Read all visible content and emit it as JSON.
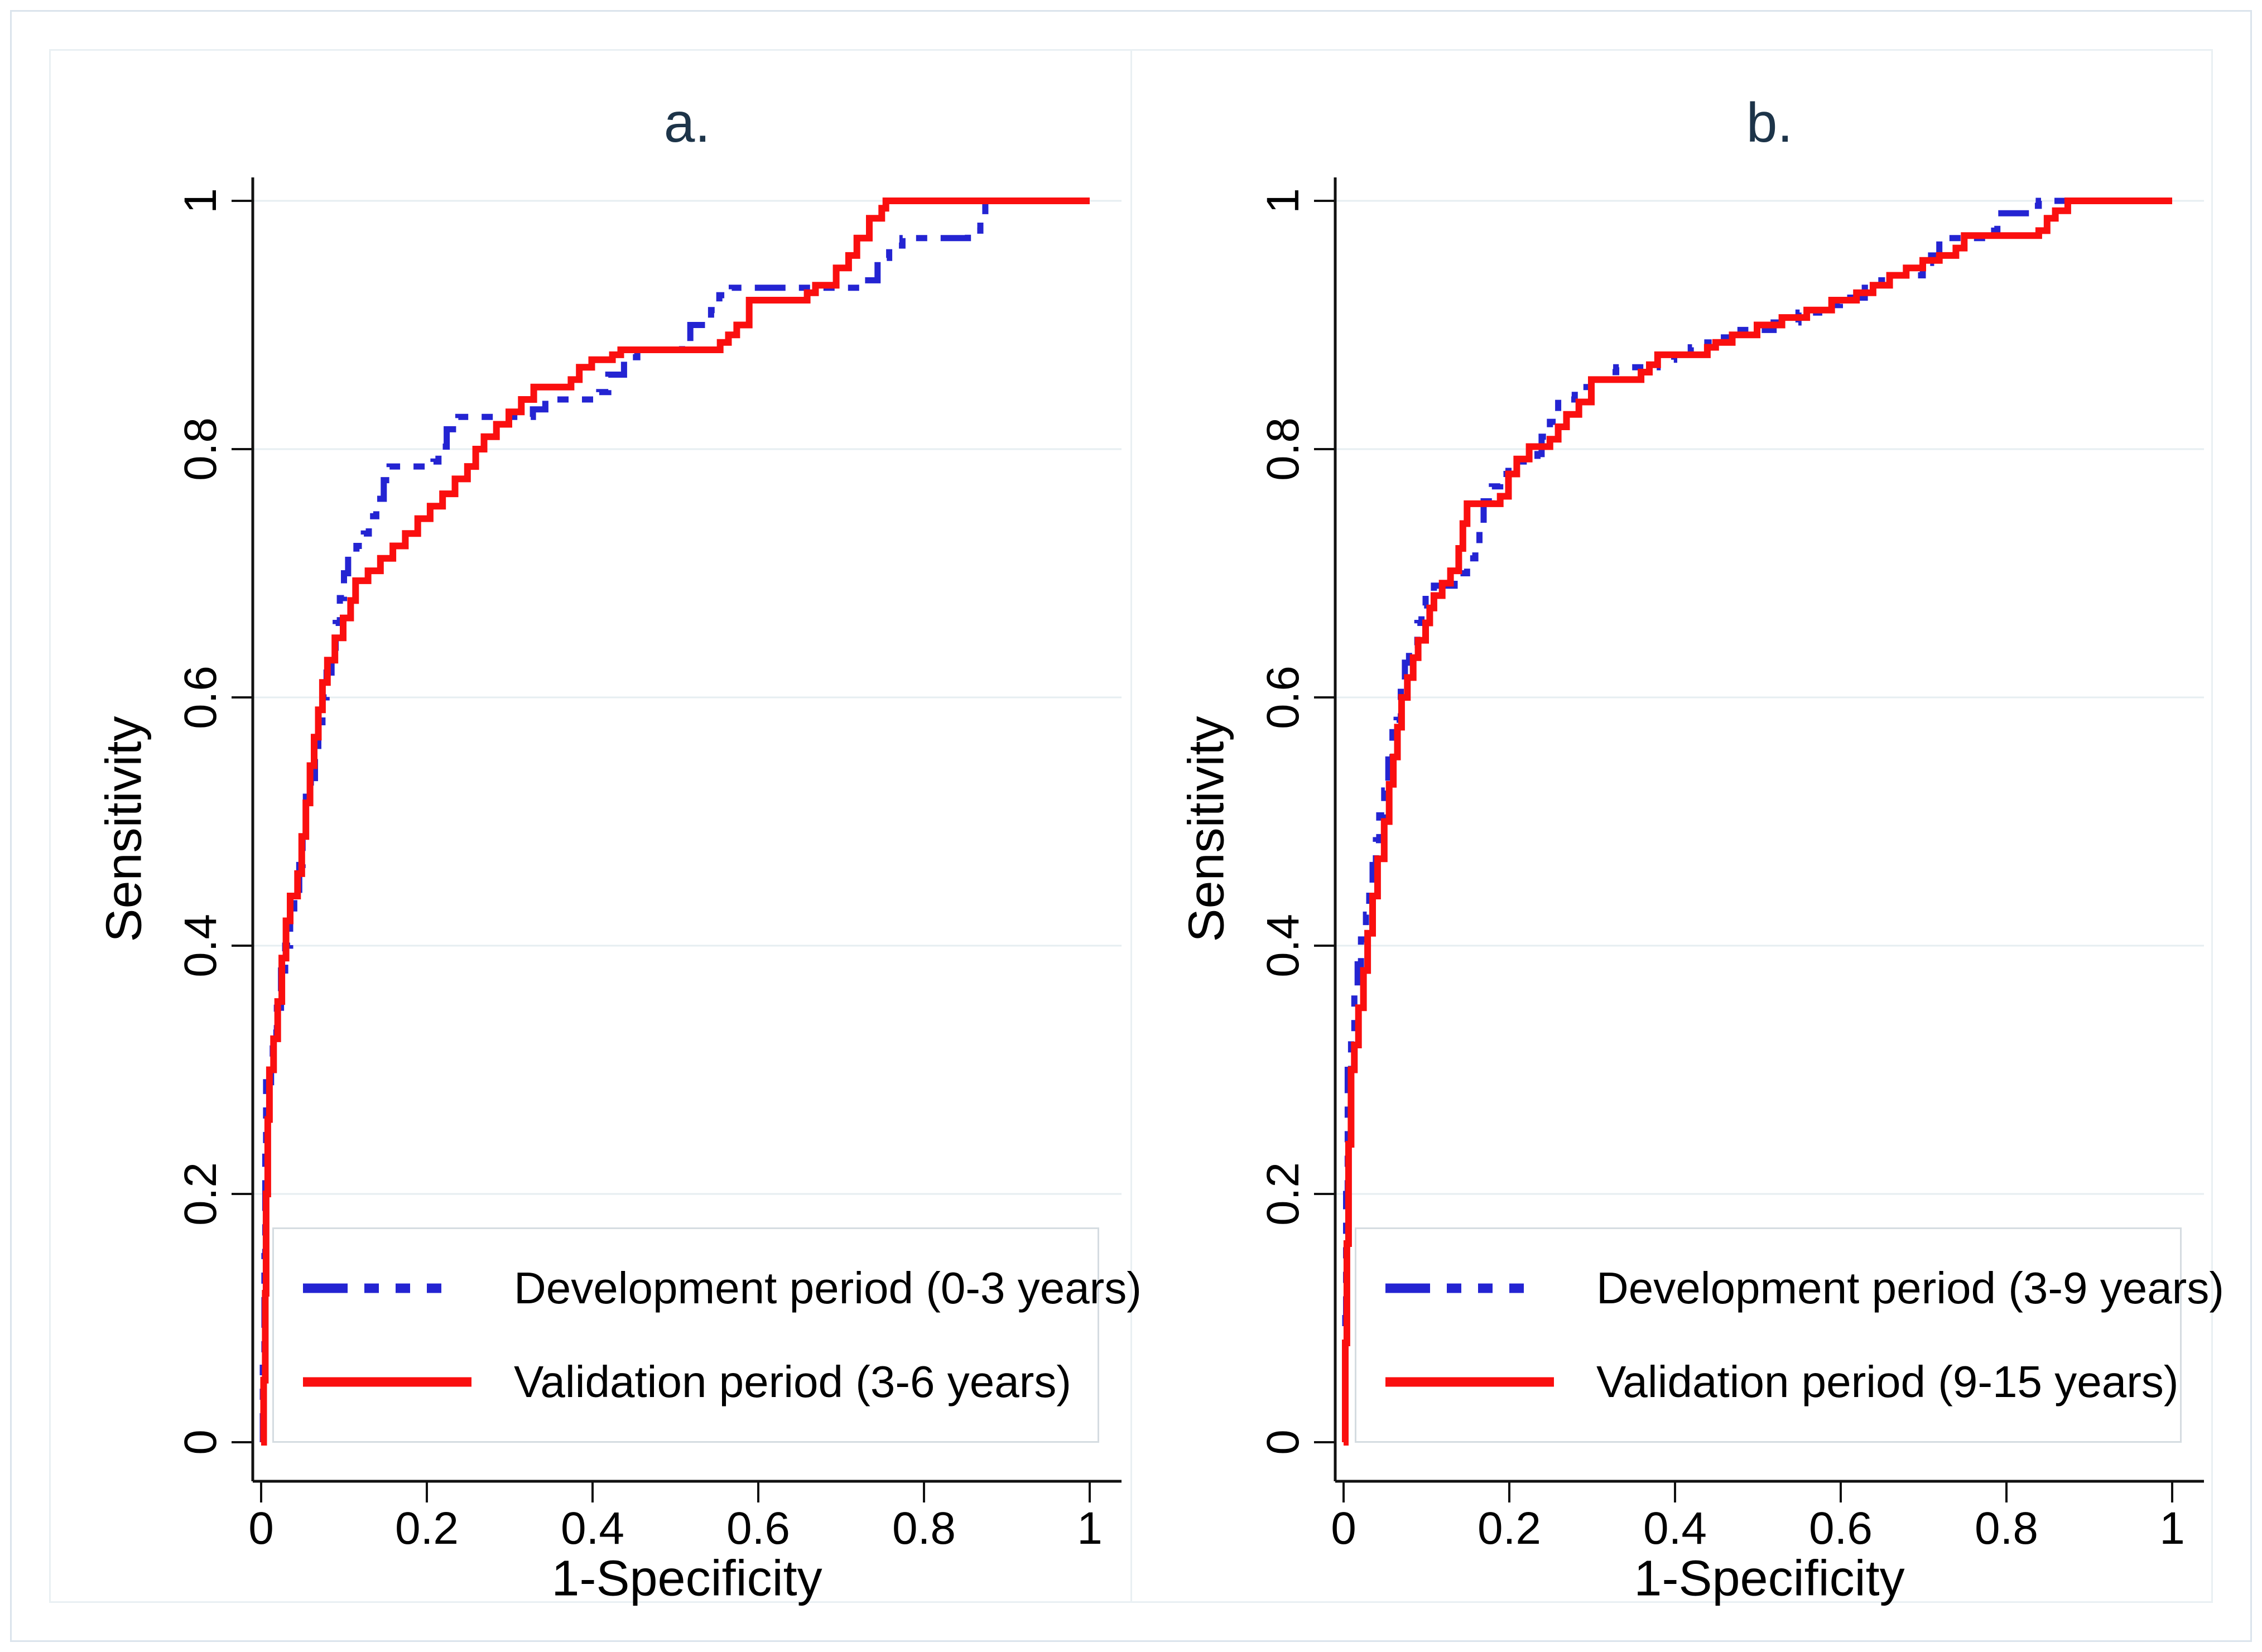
{
  "colors": {
    "development": "#2424d2",
    "validation": "#fa0f0f",
    "grid": "#e6eef1",
    "axis": "#111111",
    "title": "#1d3449",
    "legend_border": "#d5dce1",
    "outer_border": "#dbe4ec",
    "figure_border": "#e9f0f3"
  },
  "chart_data": [
    {
      "type": "line",
      "title": "a.",
      "xlabel": "1-Specificity",
      "ylabel": "Sensitivity",
      "xlim": [
        0,
        1
      ],
      "ylim": [
        0,
        1
      ],
      "grid": "horizontal",
      "legend_position": "inside-bottom-right",
      "xticks": [
        {
          "v": 0,
          "label": "0"
        },
        {
          "v": 0.2,
          "label": "0.2"
        },
        {
          "v": 0.4,
          "label": "0.4"
        },
        {
          "v": 0.6,
          "label": "0.6"
        },
        {
          "v": 0.8,
          "label": "0.8"
        },
        {
          "v": 1,
          "label": "1"
        }
      ],
      "yticks": [
        {
          "v": 0,
          "label": "0"
        },
        {
          "v": 0.2,
          "label": "0.2"
        },
        {
          "v": 0.4,
          "label": "0.4"
        },
        {
          "v": 0.6,
          "label": "0.6"
        },
        {
          "v": 0.8,
          "label": "0.8"
        },
        {
          "v": 1,
          "label": "1"
        }
      ],
      "legend": [
        {
          "label": "Development period (0-3 years)",
          "color": "#2424d2",
          "style": "dashdot"
        },
        {
          "label": "Validation period (3-6 years)",
          "color": "#fa0f0f",
          "style": "solid"
        }
      ],
      "series": [
        {
          "name": "Development period (0-3 years)",
          "color": "#2424d2",
          "dashed": true,
          "width": 11,
          "points": [
            [
              0,
              0
            ],
            [
              0.002,
              0.06
            ],
            [
              0.004,
              0.15
            ],
            [
              0.005,
              0.23
            ],
            [
              0.006,
              0.29
            ],
            [
              0.012,
              0.305
            ],
            [
              0.014,
              0.33
            ],
            [
              0.019,
              0.35
            ],
            [
              0.024,
              0.38
            ],
            [
              0.029,
              0.4
            ],
            [
              0.035,
              0.43
            ],
            [
              0.04,
              0.445
            ],
            [
              0.046,
              0.465
            ],
            [
              0.05,
              0.49
            ],
            [
              0.054,
              0.52
            ],
            [
              0.06,
              0.535
            ],
            [
              0.065,
              0.555
            ],
            [
              0.069,
              0.58
            ],
            [
              0.074,
              0.6
            ],
            [
              0.079,
              0.62
            ],
            [
              0.085,
              0.64
            ],
            [
              0.09,
              0.66
            ],
            [
              0.095,
              0.68
            ],
            [
              0.1,
              0.7
            ],
            [
              0.105,
              0.715
            ],
            [
              0.115,
              0.722
            ],
            [
              0.124,
              0.732
            ],
            [
              0.13,
              0.746
            ],
            [
              0.139,
              0.76
            ],
            [
              0.148,
              0.775
            ],
            [
              0.155,
              0.786
            ],
            [
              0.208,
              0.79
            ],
            [
              0.214,
              0.802
            ],
            [
              0.224,
              0.816
            ],
            [
              0.238,
              0.826
            ],
            [
              0.328,
              0.832
            ],
            [
              0.343,
              0.84
            ],
            [
              0.408,
              0.846
            ],
            [
              0.419,
              0.86
            ],
            [
              0.438,
              0.874
            ],
            [
              0.454,
              0.88
            ],
            [
              0.508,
              0.886
            ],
            [
              0.518,
              0.9
            ],
            [
              0.543,
              0.912
            ],
            [
              0.553,
              0.924
            ],
            [
              0.568,
              0.93
            ],
            [
              0.728,
              0.936
            ],
            [
              0.744,
              0.954
            ],
            [
              0.758,
              0.964
            ],
            [
              0.774,
              0.97
            ],
            [
              0.853,
              0.976
            ],
            [
              0.868,
              0.98
            ],
            [
              0.874,
              1
            ],
            [
              1,
              1
            ]
          ]
        },
        {
          "name": "Validation period (3-6 years)",
          "color": "#fa0f0f",
          "dashed": false,
          "width": 12,
          "points": [
            [
              0,
              0
            ],
            [
              0.003,
              0.05
            ],
            [
              0.005,
              0.12
            ],
            [
              0.006,
              0.2
            ],
            [
              0.008,
              0.26
            ],
            [
              0.01,
              0.3
            ],
            [
              0.015,
              0.325
            ],
            [
              0.02,
              0.355
            ],
            [
              0.025,
              0.39
            ],
            [
              0.03,
              0.42
            ],
            [
              0.035,
              0.44
            ],
            [
              0.044,
              0.458
            ],
            [
              0.049,
              0.488
            ],
            [
              0.054,
              0.515
            ],
            [
              0.059,
              0.545
            ],
            [
              0.064,
              0.568
            ],
            [
              0.069,
              0.59
            ],
            [
              0.074,
              0.612
            ],
            [
              0.08,
              0.63
            ],
            [
              0.089,
              0.648
            ],
            [
              0.099,
              0.664
            ],
            [
              0.108,
              0.678
            ],
            [
              0.114,
              0.694
            ],
            [
              0.129,
              0.702
            ],
            [
              0.144,
              0.712
            ],
            [
              0.159,
              0.722
            ],
            [
              0.174,
              0.732
            ],
            [
              0.189,
              0.744
            ],
            [
              0.204,
              0.754
            ],
            [
              0.219,
              0.764
            ],
            [
              0.234,
              0.776
            ],
            [
              0.249,
              0.786
            ],
            [
              0.259,
              0.8
            ],
            [
              0.269,
              0.81
            ],
            [
              0.284,
              0.82
            ],
            [
              0.299,
              0.83
            ],
            [
              0.314,
              0.84
            ],
            [
              0.329,
              0.85
            ],
            [
              0.374,
              0.856
            ],
            [
              0.384,
              0.866
            ],
            [
              0.399,
              0.872
            ],
            [
              0.424,
              0.876
            ],
            [
              0.434,
              0.88
            ],
            [
              0.554,
              0.886
            ],
            [
              0.564,
              0.892
            ],
            [
              0.574,
              0.9
            ],
            [
              0.589,
              0.92
            ],
            [
              0.659,
              0.926
            ],
            [
              0.669,
              0.932
            ],
            [
              0.694,
              0.946
            ],
            [
              0.709,
              0.956
            ],
            [
              0.719,
              0.97
            ],
            [
              0.734,
              0.986
            ],
            [
              0.749,
              0.994
            ],
            [
              0.754,
              1
            ],
            [
              1,
              1
            ]
          ]
        }
      ]
    },
    {
      "type": "line",
      "title": "b.",
      "xlabel": "1-Specificity",
      "ylabel": "Sensitivity",
      "xlim": [
        0,
        1
      ],
      "ylim": [
        0,
        1
      ],
      "grid": "horizontal",
      "legend_position": "inside-bottom-right",
      "xticks": [
        {
          "v": 0,
          "label": "0"
        },
        {
          "v": 0.2,
          "label": "0.2"
        },
        {
          "v": 0.4,
          "label": "0.4"
        },
        {
          "v": 0.6,
          "label": "0.6"
        },
        {
          "v": 0.8,
          "label": "0.8"
        },
        {
          "v": 1,
          "label": "1"
        }
      ],
      "yticks": [
        {
          "v": 0,
          "label": "0"
        },
        {
          "v": 0.2,
          "label": "0.2"
        },
        {
          "v": 0.4,
          "label": "0.4"
        },
        {
          "v": 0.6,
          "label": "0.6"
        },
        {
          "v": 0.8,
          "label": "0.8"
        },
        {
          "v": 1,
          "label": "1"
        }
      ],
      "legend": [
        {
          "label": "Development period (3-9 years)",
          "color": "#2424d2",
          "style": "dashdot"
        },
        {
          "label": "Validation period (9-15 years)",
          "color": "#fa0f0f",
          "style": "solid"
        }
      ],
      "series": [
        {
          "name": "Development period (3-9 years)",
          "color": "#2424d2",
          "dashed": true,
          "width": 11,
          "points": [
            [
              0,
              0
            ],
            [
              0.002,
              0.1
            ],
            [
              0.003,
              0.2
            ],
            [
              0.005,
              0.3
            ],
            [
              0.009,
              0.33
            ],
            [
              0.013,
              0.36
            ],
            [
              0.017,
              0.385
            ],
            [
              0.021,
              0.405
            ],
            [
              0.027,
              0.425
            ],
            [
              0.031,
              0.445
            ],
            [
              0.035,
              0.465
            ],
            [
              0.039,
              0.485
            ],
            [
              0.043,
              0.505
            ],
            [
              0.049,
              0.525
            ],
            [
              0.054,
              0.55
            ],
            [
              0.059,
              0.572
            ],
            [
              0.064,
              0.582
            ],
            [
              0.069,
              0.608
            ],
            [
              0.074,
              0.628
            ],
            [
              0.079,
              0.642
            ],
            [
              0.089,
              0.66
            ],
            [
              0.094,
              0.674
            ],
            [
              0.099,
              0.682
            ],
            [
              0.109,
              0.69
            ],
            [
              0.134,
              0.7
            ],
            [
              0.149,
              0.712
            ],
            [
              0.159,
              0.722
            ],
            [
              0.164,
              0.74
            ],
            [
              0.169,
              0.758
            ],
            [
              0.179,
              0.77
            ],
            [
              0.189,
              0.78
            ],
            [
              0.199,
              0.79
            ],
            [
              0.234,
              0.796
            ],
            [
              0.239,
              0.81
            ],
            [
              0.249,
              0.822
            ],
            [
              0.259,
              0.84
            ],
            [
              0.279,
              0.85
            ],
            [
              0.299,
              0.856
            ],
            [
              0.319,
              0.862
            ],
            [
              0.329,
              0.866
            ],
            [
              0.379,
              0.872
            ],
            [
              0.399,
              0.876
            ],
            [
              0.419,
              0.882
            ],
            [
              0.439,
              0.886
            ],
            [
              0.459,
              0.89
            ],
            [
              0.479,
              0.896
            ],
            [
              0.519,
              0.902
            ],
            [
              0.549,
              0.91
            ],
            [
              0.574,
              0.916
            ],
            [
              0.599,
              0.922
            ],
            [
              0.629,
              0.93
            ],
            [
              0.649,
              0.936
            ],
            [
              0.659,
              0.94
            ],
            [
              0.699,
              0.95
            ],
            [
              0.709,
              0.956
            ],
            [
              0.719,
              0.97
            ],
            [
              0.779,
              0.976
            ],
            [
              0.789,
              0.99
            ],
            [
              0.829,
              0.996
            ],
            [
              0.839,
              1
            ],
            [
              1,
              1
            ]
          ]
        },
        {
          "name": "Validation period (9-15 years)",
          "color": "#fa0f0f",
          "dashed": false,
          "width": 12,
          "points": [
            [
              0,
              0
            ],
            [
              0.002,
              0.08
            ],
            [
              0.004,
              0.16
            ],
            [
              0.006,
              0.24
            ],
            [
              0.009,
              0.3
            ],
            [
              0.013,
              0.32
            ],
            [
              0.018,
              0.35
            ],
            [
              0.024,
              0.38
            ],
            [
              0.029,
              0.41
            ],
            [
              0.035,
              0.44
            ],
            [
              0.041,
              0.47
            ],
            [
              0.049,
              0.5
            ],
            [
              0.055,
              0.53
            ],
            [
              0.06,
              0.552
            ],
            [
              0.065,
              0.576
            ],
            [
              0.07,
              0.6
            ],
            [
              0.077,
              0.616
            ],
            [
              0.084,
              0.632
            ],
            [
              0.09,
              0.646
            ],
            [
              0.099,
              0.66
            ],
            [
              0.104,
              0.672
            ],
            [
              0.109,
              0.682
            ],
            [
              0.119,
              0.692
            ],
            [
              0.129,
              0.702
            ],
            [
              0.139,
              0.72
            ],
            [
              0.144,
              0.74
            ],
            [
              0.149,
              0.756
            ],
            [
              0.189,
              0.762
            ],
            [
              0.199,
              0.78
            ],
            [
              0.209,
              0.792
            ],
            [
              0.224,
              0.802
            ],
            [
              0.249,
              0.808
            ],
            [
              0.259,
              0.818
            ],
            [
              0.269,
              0.828
            ],
            [
              0.284,
              0.838
            ],
            [
              0.299,
              0.856
            ],
            [
              0.359,
              0.862
            ],
            [
              0.369,
              0.868
            ],
            [
              0.379,
              0.876
            ],
            [
              0.439,
              0.882
            ],
            [
              0.449,
              0.886
            ],
            [
              0.469,
              0.892
            ],
            [
              0.499,
              0.9
            ],
            [
              0.529,
              0.906
            ],
            [
              0.559,
              0.912
            ],
            [
              0.589,
              0.92
            ],
            [
              0.619,
              0.926
            ],
            [
              0.639,
              0.932
            ],
            [
              0.659,
              0.94
            ],
            [
              0.679,
              0.946
            ],
            [
              0.699,
              0.952
            ],
            [
              0.719,
              0.956
            ],
            [
              0.739,
              0.962
            ],
            [
              0.749,
              0.972
            ],
            [
              0.839,
              0.976
            ],
            [
              0.849,
              0.986
            ],
            [
              0.859,
              0.992
            ],
            [
              0.874,
              1
            ],
            [
              1,
              1
            ]
          ]
        }
      ]
    }
  ]
}
